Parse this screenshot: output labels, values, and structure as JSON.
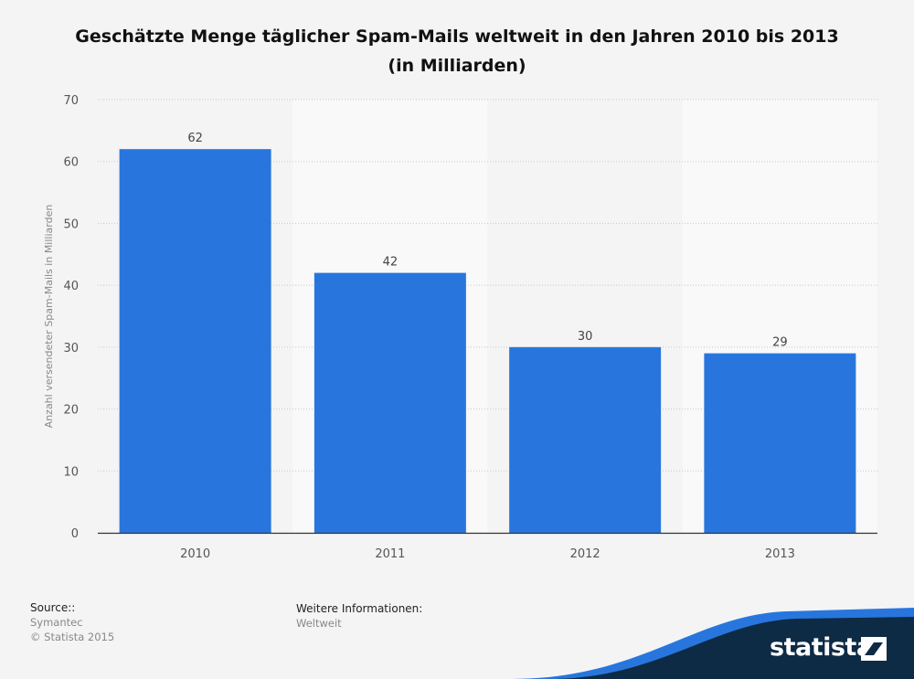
{
  "title_lines": [
    "Geschätzte Menge täglicher Spam-Mails weltweit in den Jahren 2010 bis 2013",
    "(in Milliarden)"
  ],
  "chart_data": {
    "type": "bar",
    "categories": [
      "2010",
      "2011",
      "2012",
      "2013"
    ],
    "values": [
      62,
      42,
      30,
      29
    ],
    "data_labels": [
      "62",
      "42",
      "30",
      "29"
    ],
    "ylabel": "Anzahl versendeter Spam-Mails in Milliarden",
    "xlabel": "",
    "ylim": [
      0,
      70
    ],
    "yticks": [
      0,
      10,
      20,
      30,
      40,
      50,
      60,
      70
    ],
    "grid": true,
    "bar_color": "#2876dd"
  },
  "footer": {
    "source_heading": "Source::",
    "source_lines": [
      "Symantec",
      "© Statista 2015"
    ],
    "info_heading": "Weitere Informationen:",
    "info_lines": [
      "Weltweit"
    ]
  },
  "brand": {
    "name": "statista",
    "icon": "statista-logo-icon",
    "wave_color": "#2876dd",
    "dark_color": "#0d2b45"
  }
}
